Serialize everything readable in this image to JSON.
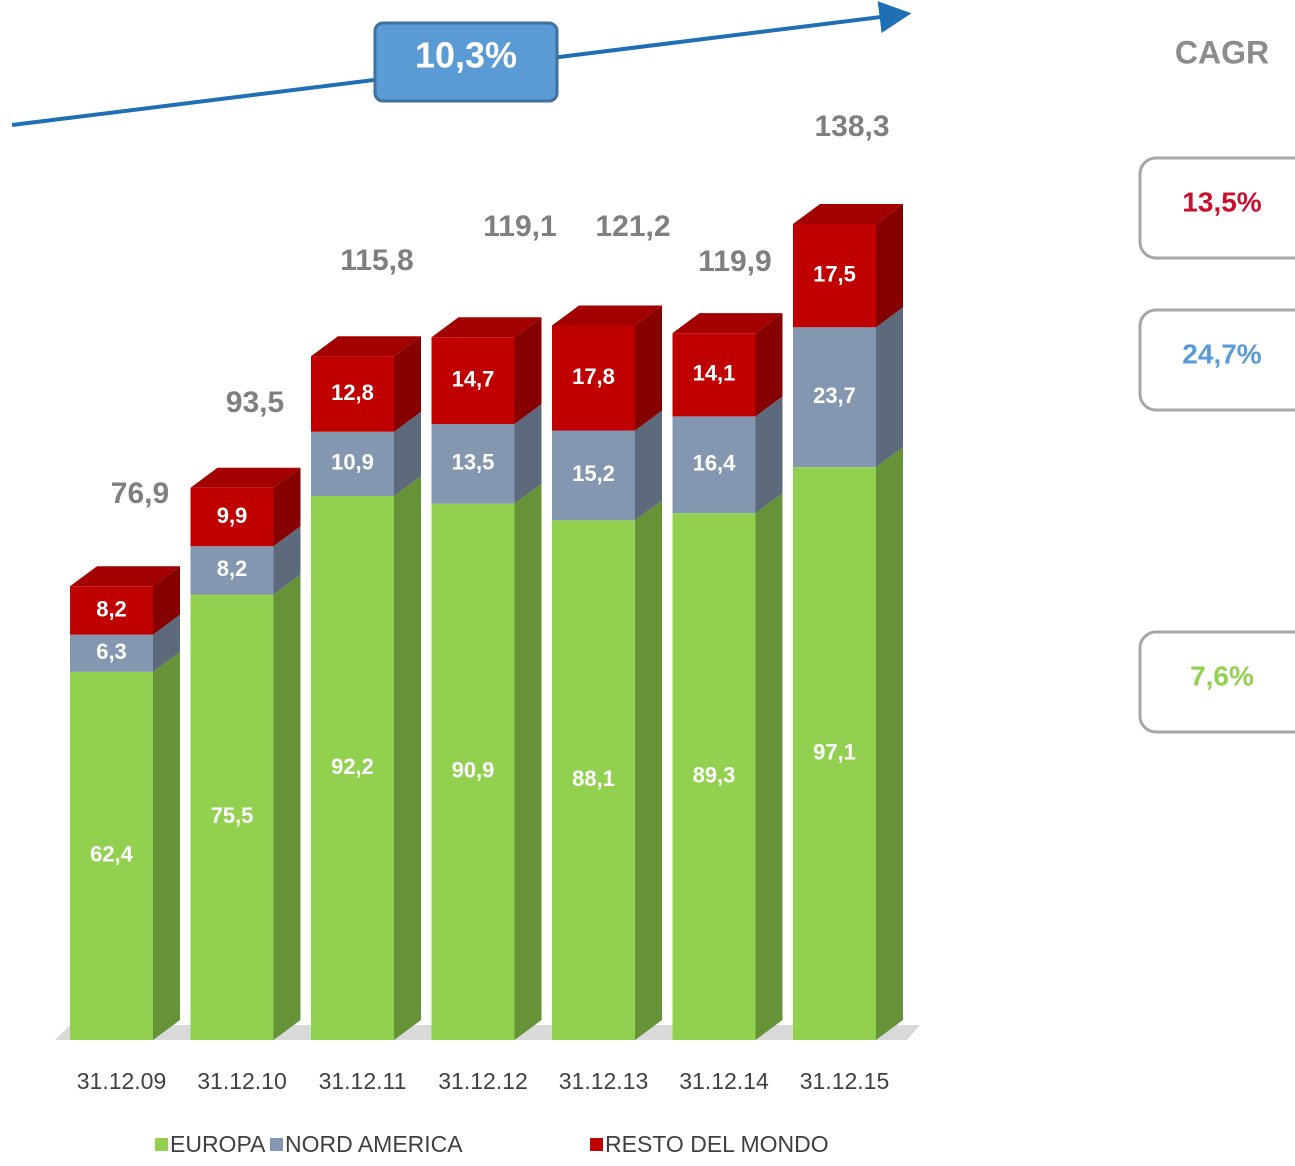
{
  "chart_data": {
    "type": "stacked-bar-3d",
    "categories": [
      "31.12.09",
      "31.12.10",
      "31.12.11",
      "31.12.12",
      "31.12.13",
      "31.12.14",
      "31.12.15"
    ],
    "series": [
      {
        "name": "EUROPA",
        "color": "#92d050",
        "values": [
          62.4,
          75.5,
          92.2,
          90.9,
          88.1,
          89.3,
          97.1
        ],
        "value_labels": [
          "62,4",
          "75,5",
          "92,2",
          "90,9",
          "88,1",
          "89,3",
          "97,1"
        ]
      },
      {
        "name": "NORD AMERICA",
        "color": "#8497b0",
        "values": [
          6.3,
          8.2,
          10.9,
          13.5,
          15.2,
          16.4,
          23.7
        ],
        "value_labels": [
          "6,3",
          "8,2",
          "10,9",
          "13,5",
          "15,2",
          "16,4",
          "23,7"
        ]
      },
      {
        "name": "RESTO DEL MONDO",
        "color": "#c00000",
        "values": [
          8.2,
          9.9,
          12.8,
          14.7,
          17.8,
          14.1,
          17.5
        ],
        "value_labels": [
          "8,2",
          "9,9",
          "12,8",
          "14,7",
          "17,8",
          "14,1",
          "17,5"
        ]
      }
    ],
    "totals": [
      76.9,
      93.5,
      115.8,
      119.1,
      121.2,
      119.9,
      138.3
    ],
    "total_labels": [
      "76,9",
      "93,5",
      "115,8",
      "119,1",
      "121,2",
      "119,9",
      "138,3"
    ],
    "trend_label": "10,3%",
    "cagr_title": "CAGR",
    "cagr": [
      {
        "label": "13,5%",
        "color": "#c8102e"
      },
      {
        "label": "24,7%",
        "color": "#5b9bd5"
      },
      {
        "label": "7,6%",
        "color": "#92d050"
      }
    ]
  }
}
